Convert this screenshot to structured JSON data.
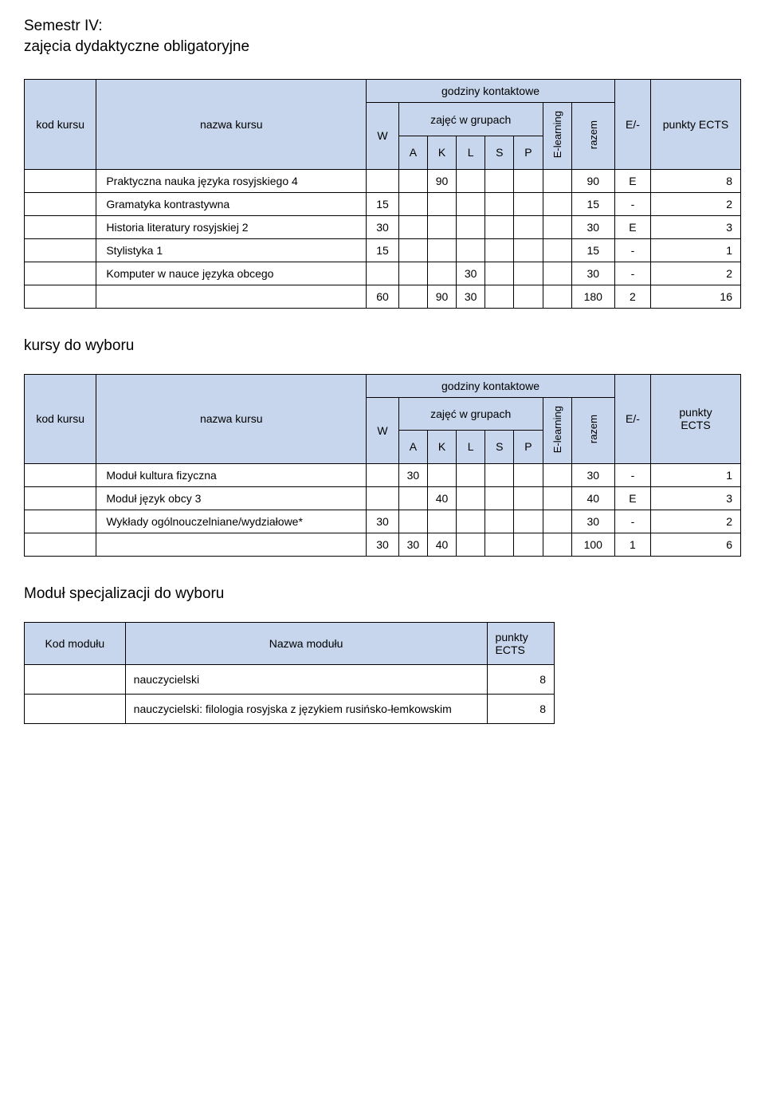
{
  "colors": {
    "header_bg": "#c7d6ec",
    "border": "#000000",
    "text": "#000000",
    "page_bg": "#ffffff"
  },
  "fonts": {
    "base_size": 14,
    "title_size": 19
  },
  "heading": {
    "line1": "Semestr IV:",
    "line2": "zajęcia dydaktyczne obligatoryjne"
  },
  "table_headers": {
    "kod": "kod kursu",
    "nazwa": "nazwa kursu",
    "godziny": "godziny kontaktowe",
    "zajec": "zajęć w grupach",
    "W": "W",
    "A": "A",
    "K": "K",
    "L": "L",
    "S": "S",
    "P": "P",
    "elearning": "E-learning",
    "razem": "razem",
    "ef": "E/-",
    "punkty": "punkty ECTS",
    "punkty_wrapped_1": "punkty",
    "punkty_wrapped_2": "ECTS"
  },
  "table1": {
    "rows": [
      {
        "nazwa": "Praktyczna nauka języka rosyjskiego 4",
        "W": "",
        "A": "",
        "K": "90",
        "L": "",
        "S": "",
        "P": "",
        "el": "",
        "raz": "90",
        "ef": "E",
        "pkt": "8"
      },
      {
        "nazwa": "Gramatyka kontrastywna",
        "W": "15",
        "A": "",
        "K": "",
        "L": "",
        "S": "",
        "P": "",
        "el": "",
        "raz": "15",
        "ef": "-",
        "pkt": "2"
      },
      {
        "nazwa": "Historia literatury rosyjskiej 2",
        "W": "30",
        "A": "",
        "K": "",
        "L": "",
        "S": "",
        "P": "",
        "el": "",
        "raz": "30",
        "ef": "E",
        "pkt": "3"
      },
      {
        "nazwa": "Stylistyka 1",
        "W": "15",
        "A": "",
        "K": "",
        "L": "",
        "S": "",
        "P": "",
        "el": "",
        "raz": "15",
        "ef": "-",
        "pkt": "1"
      },
      {
        "nazwa": "Komputer w nauce języka obcego",
        "W": "",
        "A": "",
        "K": "",
        "L": "30",
        "S": "",
        "P": "",
        "el": "",
        "raz": "30",
        "ef": "-",
        "pkt": "2"
      }
    ],
    "total": {
      "W": "60",
      "A": "",
      "K": "90",
      "L": "30",
      "S": "",
      "P": "",
      "el": "",
      "raz": "180",
      "ef": "2",
      "pkt": "16"
    }
  },
  "section2_title": "kursy do wyboru",
  "table2": {
    "rows": [
      {
        "nazwa": "Moduł kultura fizyczna",
        "W": "",
        "A": "30",
        "K": "",
        "L": "",
        "S": "",
        "P": "",
        "el": "",
        "raz": "30",
        "ef": "-",
        "pkt": "1"
      },
      {
        "nazwa": "Moduł język obcy 3",
        "W": "",
        "A": "",
        "K": "40",
        "L": "",
        "S": "",
        "P": "",
        "el": "",
        "raz": "40",
        "ef": "E",
        "pkt": "3"
      },
      {
        "nazwa": "Wykłady ogólnouczelniane/wydziałowe*",
        "W": "30",
        "A": "",
        "K": "",
        "L": "",
        "S": "",
        "P": "",
        "el": "",
        "raz": "30",
        "ef": "-",
        "pkt": "2"
      }
    ],
    "total": {
      "W": "30",
      "A": "30",
      "K": "40",
      "L": "",
      "S": "",
      "P": "",
      "el": "",
      "raz": "100",
      "ef": "1",
      "pkt": "6"
    }
  },
  "section3_title": "Moduł specjalizacji do wyboru",
  "module_headers": {
    "kod": "Kod modułu",
    "nazwa": "Nazwa modułu",
    "pkt": "punkty ECTS"
  },
  "modules": {
    "rows": [
      {
        "nazwa": "nauczycielski",
        "pkt": "8"
      },
      {
        "nazwa": "nauczycielski: filologia rosyjska z językiem rusińsko-łemkowskim",
        "pkt": "8"
      }
    ]
  }
}
